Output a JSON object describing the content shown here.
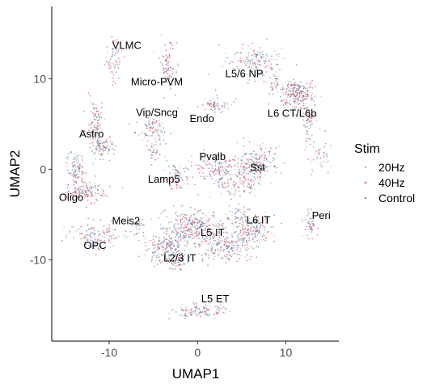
{
  "chart_data": {
    "type": "scatter",
    "title": "",
    "xlabel": "UMAP1",
    "ylabel": "UMAP2",
    "xlim": [
      -16.5,
      16
    ],
    "ylim": [
      -19,
      18
    ],
    "x_ticks": [
      -10,
      0,
      10
    ],
    "y_ticks": [
      10,
      0,
      -10
    ],
    "x_tick_labels": [
      "-10",
      "0",
      "10"
    ],
    "y_tick_labels": [
      "10",
      "0",
      "-10"
    ],
    "grid": false,
    "legend": {
      "title": "Stim",
      "position": "right",
      "entries": [
        "20Hz",
        "40Hz",
        "Control"
      ]
    },
    "series": [
      {
        "name": "20Hz",
        "color": "#9aa9c2"
      },
      {
        "name": "40Hz",
        "color": "#c8354a"
      },
      {
        "name": "Control",
        "color": "#2f6fa8"
      }
    ],
    "clusters": [
      {
        "label": "VLMC",
        "label_x": -8,
        "label_y": 13.3,
        "shapes": [
          {
            "x": -9.5,
            "y": 12.2,
            "sx": 0.5,
            "sy": 1.2,
            "n": 60
          }
        ]
      },
      {
        "label": "Micro-PVM",
        "label_x": -4.6,
        "label_y": 9.3,
        "shapes": [
          {
            "x": -3.4,
            "y": 11.3,
            "sx": 0.45,
            "sy": 1.4,
            "n": 90
          }
        ]
      },
      {
        "label": "L5/6 NP",
        "label_x": 5.3,
        "label_y": 10.2,
        "shapes": [
          {
            "x": 6.3,
            "y": 11.9,
            "sx": 1.5,
            "sy": 0.9,
            "n": 150
          },
          {
            "x": 8.5,
            "y": 9.5,
            "sx": 0.4,
            "sy": 0.8,
            "n": 30
          }
        ]
      },
      {
        "label": "Vip/Sncg",
        "label_x": -4.6,
        "label_y": 5.9,
        "shapes": [
          {
            "x": -5.2,
            "y": 4.4,
            "sx": 0.9,
            "sy": 0.6,
            "n": 80
          }
        ]
      },
      {
        "label": "Endo",
        "label_x": 0.5,
        "label_y": 5.2,
        "shapes": [
          {
            "x": 1.8,
            "y": 7.2,
            "sx": 1.0,
            "sy": 0.5,
            "n": 60
          }
        ]
      },
      {
        "label": "L6 CT/L6b",
        "label_x": 10.7,
        "label_y": 5.8,
        "shapes": [
          {
            "x": 11.2,
            "y": 8.3,
            "sx": 1.0,
            "sy": 0.8,
            "n": 220
          },
          {
            "x": 12.6,
            "y": 5.3,
            "sx": 0.4,
            "sy": 1.3,
            "n": 60
          },
          {
            "x": 13.8,
            "y": 1.5,
            "sx": 0.6,
            "sy": 1.1,
            "n": 40
          }
        ]
      },
      {
        "label": "Astro",
        "label_x": -12,
        "label_y": 3.5,
        "shapes": [
          {
            "x": -11.5,
            "y": 5.2,
            "sx": 0.4,
            "sy": 1.3,
            "n": 80
          },
          {
            "x": -10.8,
            "y": 2.4,
            "sx": 0.8,
            "sy": 0.6,
            "n": 90
          }
        ]
      },
      {
        "label": "Pvalb",
        "label_x": 1.7,
        "label_y": 1.0,
        "shapes": [
          {
            "x": 2.5,
            "y": 0.2,
            "sx": 1.5,
            "sy": 0.8,
            "n": 160
          },
          {
            "x": 3.5,
            "y": -2.0,
            "sx": 0.6,
            "sy": 0.5,
            "n": 40
          }
        ]
      },
      {
        "label": "Sst",
        "label_x": 6.8,
        "label_y": -0.2,
        "shapes": [
          {
            "x": 6.7,
            "y": 0.6,
            "sx": 1.0,
            "sy": 1.0,
            "n": 180
          },
          {
            "x": 5.6,
            "y": -1.6,
            "sx": 0.8,
            "sy": 0.7,
            "n": 60
          }
        ]
      },
      {
        "label": "Lamp5",
        "label_x": -3.8,
        "label_y": -1.5,
        "shapes": [
          {
            "x": -2.4,
            "y": -1.0,
            "sx": 0.5,
            "sy": 0.9,
            "n": 70
          },
          {
            "x": -4.8,
            "y": 2.0,
            "sx": 0.4,
            "sy": 0.7,
            "n": 35
          }
        ]
      },
      {
        "label": "Oligo",
        "label_x": -14.3,
        "label_y": -3.5,
        "shapes": [
          {
            "x": -13.8,
            "y": 0.0,
            "sx": 0.5,
            "sy": 1.0,
            "n": 90
          },
          {
            "x": -12.7,
            "y": -2.5,
            "sx": 1.1,
            "sy": 0.6,
            "n": 130
          }
        ]
      },
      {
        "label": "Meis2",
        "label_x": -8.1,
        "label_y": -6.1,
        "shapes": [
          {
            "x": -6.6,
            "y": -6.4,
            "sx": 0.3,
            "sy": 0.5,
            "n": 25
          }
        ]
      },
      {
        "label": "L5 IT",
        "label_x": 1.7,
        "label_y": -7.4,
        "shapes": [
          {
            "x": -0.5,
            "y": -6.4,
            "sx": 1.6,
            "sy": 1.0,
            "n": 320
          },
          {
            "x": 3.2,
            "y": -8.5,
            "sx": 1.5,
            "sy": 0.9,
            "n": 200
          }
        ]
      },
      {
        "label": "L6 IT",
        "label_x": 6.9,
        "label_y": -6.0,
        "shapes": [
          {
            "x": 6.2,
            "y": -6.6,
            "sx": 1.1,
            "sy": 0.8,
            "n": 170
          },
          {
            "x": 4.5,
            "y": -5.0,
            "sx": 0.6,
            "sy": 0.5,
            "n": 40
          }
        ]
      },
      {
        "label": "Peri",
        "label_x": 14,
        "label_y": -5.5,
        "shapes": [
          {
            "x": 12.8,
            "y": -6.0,
            "sx": 0.4,
            "sy": 0.7,
            "n": 45
          }
        ]
      },
      {
        "label": "OPC",
        "label_x": -11.6,
        "label_y": -8.8,
        "shapes": [
          {
            "x": -11.3,
            "y": -7.4,
            "sx": 1.5,
            "sy": 0.7,
            "n": 130
          }
        ]
      },
      {
        "label": "L2/3 IT",
        "label_x": -2,
        "label_y": -10.2,
        "shapes": [
          {
            "x": -3.6,
            "y": -8.8,
            "sx": 1.1,
            "sy": 0.9,
            "n": 190
          },
          {
            "x": -2.2,
            "y": -10.2,
            "sx": 0.6,
            "sy": 0.4,
            "n": 50
          }
        ]
      },
      {
        "label": "L5 ET",
        "label_x": 2,
        "label_y": -14.7,
        "shapes": [
          {
            "x": 0.3,
            "y": -15.6,
            "sx": 1.5,
            "sy": 0.45,
            "n": 110
          }
        ]
      }
    ]
  }
}
